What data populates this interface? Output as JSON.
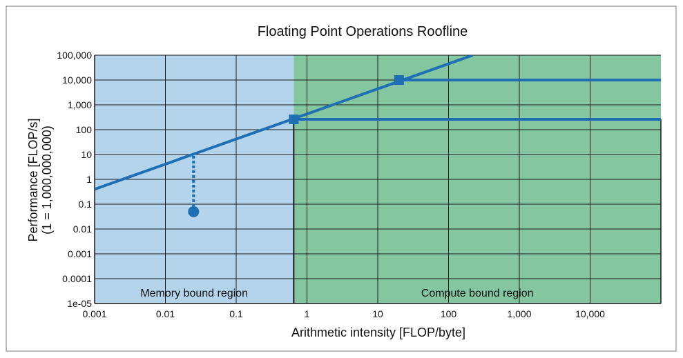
{
  "chart_data": {
    "type": "line",
    "title": "Floating Point Operations Roofline",
    "xlabel": "Arithmetic intensity [FLOP/byte]",
    "ylabel": [
      "Performance [FLOP/s]",
      "(1 = 1,000,000,000)"
    ],
    "x_scale": "log",
    "y_scale": "log",
    "xlim": [
      0.001,
      100000
    ],
    "ylim": [
      1e-05,
      100000
    ],
    "x_ticks": [
      {
        "value": 0.001,
        "label": "0.001"
      },
      {
        "value": 0.01,
        "label": "0.01"
      },
      {
        "value": 0.1,
        "label": "0.1"
      },
      {
        "value": 1,
        "label": "1"
      },
      {
        "value": 10,
        "label": "10"
      },
      {
        "value": 100,
        "label": "100"
      },
      {
        "value": 1000,
        "label": "1,000"
      },
      {
        "value": 10000,
        "label": "10,000"
      }
    ],
    "y_ticks": [
      {
        "value": 1e-05,
        "label": "1e-05"
      },
      {
        "value": 0.0001,
        "label": "0.0001"
      },
      {
        "value": 0.001,
        "label": "0.001"
      },
      {
        "value": 0.01,
        "label": "0.01"
      },
      {
        "value": 0.1,
        "label": "0.1"
      },
      {
        "value": 1,
        "label": "1"
      },
      {
        "value": 10,
        "label": "10"
      },
      {
        "value": 100,
        "label": "100"
      },
      {
        "value": 1000,
        "label": "1,000"
      },
      {
        "value": 10000,
        "label": "10,000"
      },
      {
        "value": 100000,
        "label": "100,000"
      }
    ],
    "grid": true,
    "series": [
      {
        "x": [
          0.001,
          220
        ],
        "y": [
          0.4,
          100000
        ],
        "color": "#1f6fb5"
      },
      {
        "x": [
          0.65,
          100000
        ],
        "y": [
          260,
          260
        ],
        "color": "#1f6fb5"
      },
      {
        "x": [
          20,
          100000
        ],
        "y": [
          10000,
          10000
        ],
        "color": "#1f6fb5"
      }
    ],
    "markers": [
      {
        "x": 0.65,
        "y": 260,
        "shape": "square",
        "color": "#1f6fb5"
      },
      {
        "x": 20,
        "y": 10000,
        "shape": "square",
        "color": "#1f6fb5"
      },
      {
        "x": 0.025,
        "y": 0.05,
        "shape": "circle",
        "color": "#1f6fb5"
      }
    ],
    "annotations": [
      {
        "type": "dotted-line",
        "x": 0.025,
        "y_from": 0.05,
        "y_to": 10,
        "color": "#1f6fb5"
      }
    ],
    "regions": [
      {
        "label": "Memory bound region",
        "x_from": 0.001,
        "x_to": 0.65,
        "color": "#b4d4ec"
      },
      {
        "label": "Compute bound region",
        "x_from": 0.65,
        "x_to": 100000,
        "color": "#83c69f"
      }
    ]
  }
}
